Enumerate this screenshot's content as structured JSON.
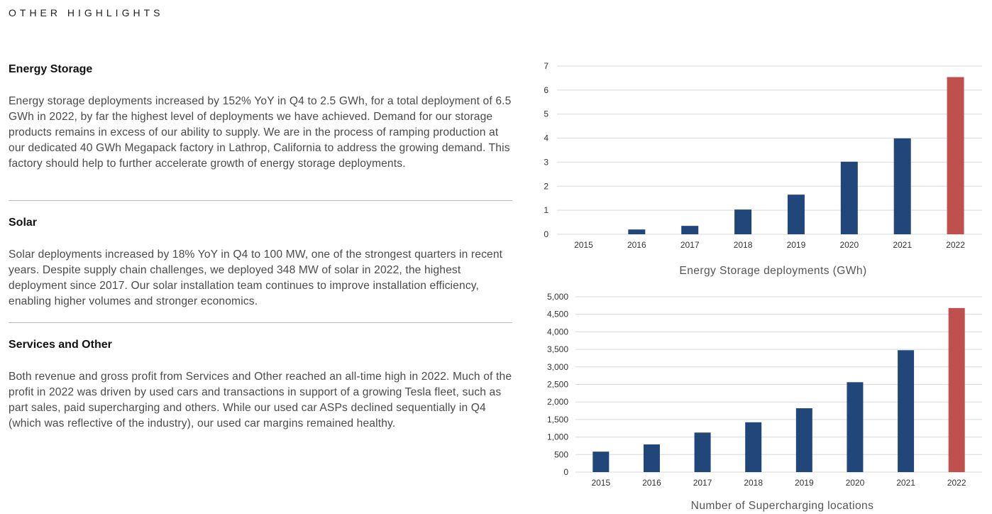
{
  "page": {
    "heading": "OTHER HIGHLIGHTS"
  },
  "sections": {
    "energy_storage": {
      "title": "Energy Storage",
      "body": "Energy storage deployments increased by 152% YoY in Q4 to 2.5 GWh, for a total deployment of 6.5 GWh in 2022, by far the highest level of deployments we have achieved. Demand for our storage products remains in excess of our ability to supply. We are in the process of ramping production at our dedicated 40 GWh Megapack factory in Lathrop, California to address the growing demand. This factory should help to further accelerate growth of energy storage deployments."
    },
    "solar": {
      "title": "Solar",
      "body": "Solar deployments increased by 18% YoY in Q4 to 100 MW, one of the strongest quarters in recent years. Despite supply chain challenges, we deployed 348 MW of solar in 2022, the highest deployment since 2017. Our solar installation team continues to improve installation efficiency, enabling higher volumes and stronger economics."
    },
    "services": {
      "title": "Services and Other",
      "body": "Both revenue and gross profit from Services and Other reached an all-time high in 2022. Much of the profit in 2022 was driven by used cars and transactions in support of a growing Tesla fleet, such as part sales, paid supercharging and others. While our used car ASPs declined sequentially in Q4 (which was reflective of the industry), our used car margins remained healthy."
    }
  },
  "colors": {
    "bar": "#21477a",
    "highlight": "#c0504d",
    "grid": "#d9d9d9"
  },
  "chart_data": [
    {
      "type": "bar",
      "title": "Energy Storage deployments (GWh)",
      "categories": [
        "2015",
        "2016",
        "2017",
        "2018",
        "2019",
        "2020",
        "2021",
        "2022"
      ],
      "values": [
        0,
        0.2,
        0.35,
        1.03,
        1.65,
        3.02,
        3.99,
        6.54
      ],
      "ylim": [
        0,
        7
      ],
      "yticks": [
        0,
        1,
        2,
        3,
        4,
        5,
        6,
        7
      ],
      "ytick_labels": [
        "0",
        "1",
        "2",
        "3",
        "4",
        "5",
        "6",
        "7"
      ],
      "grid": true,
      "highlight_category": "2022"
    },
    {
      "type": "bar",
      "title": "Number of Supercharging locations",
      "categories": [
        "2015",
        "2016",
        "2017",
        "2018",
        "2019",
        "2020",
        "2021",
        "2022"
      ],
      "values": [
        584,
        790,
        1128,
        1421,
        1821,
        2564,
        3476,
        4678
      ],
      "ylim": [
        0,
        5000
      ],
      "yticks": [
        0,
        500,
        1000,
        1500,
        2000,
        2500,
        3000,
        3500,
        4000,
        4500,
        5000
      ],
      "ytick_labels": [
        "0",
        "500",
        "1,000",
        "1,500",
        "2,000",
        "2,500",
        "3,000",
        "3,500",
        "4,000",
        "4,500",
        "5,000"
      ],
      "grid": true,
      "highlight_category": "2022"
    }
  ]
}
